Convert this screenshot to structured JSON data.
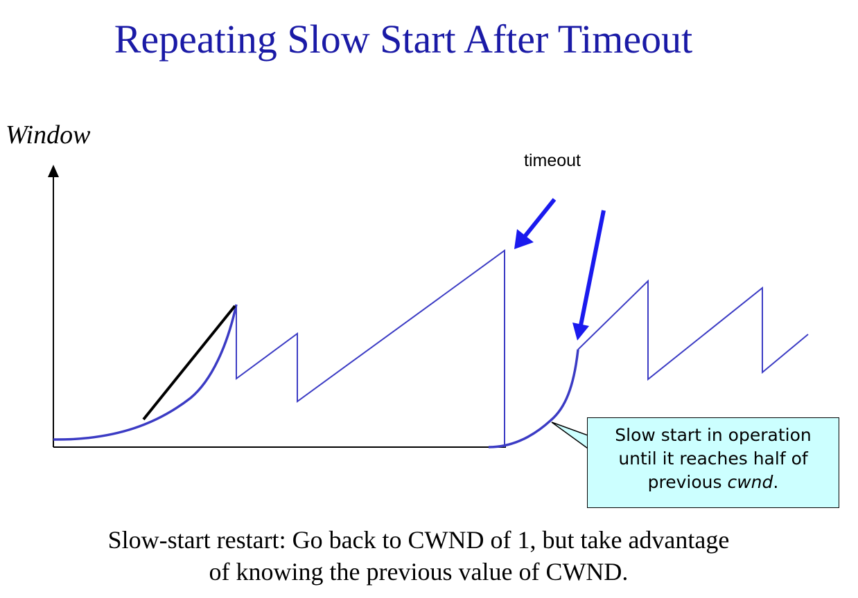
{
  "title": "Repeating Slow Start After Timeout",
  "axis": {
    "y_label": "Window"
  },
  "annotations": {
    "timeout_label": "timeout"
  },
  "callout": {
    "line1": "Slow start in operation",
    "line2": "until it reaches half of",
    "line3_prefix": "previous ",
    "line3_emph": "cwnd",
    "line3_suffix": "."
  },
  "caption": {
    "line1": "Slow-start restart: Go back to CWND of 1, but take advantage",
    "line2": "of knowing the previous value of CWND."
  },
  "colors": {
    "title": "#1a1aa6",
    "curve": "#3b3bc4",
    "arrow": "#1a1aee",
    "callout_fill": "#ccffff",
    "tangent": "#000000"
  }
}
